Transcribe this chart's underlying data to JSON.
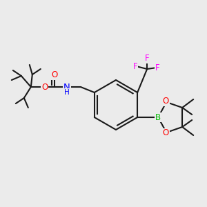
{
  "bg_color": "#ebebeb",
  "figsize": [
    3.0,
    3.0
  ],
  "dpi": 100,
  "bond_color": "#1a1a1a",
  "bond_lw": 1.5,
  "atom_colors": {
    "C": "#1a1a1a",
    "N": "#0000ff",
    "O": "#ff0000",
    "F": "#ff00ff",
    "B": "#00bb00"
  },
  "font_size": 8.5
}
